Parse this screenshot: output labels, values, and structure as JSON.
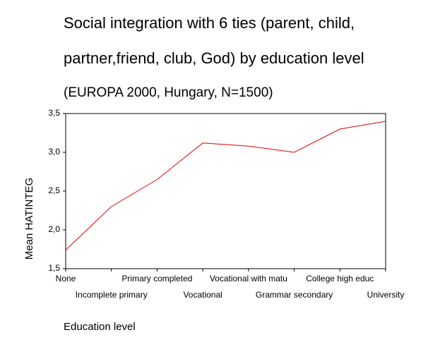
{
  "chart_data": {
    "type": "line",
    "title": [
      "Social integration with 6 ties (parent, child,",
      "partner,friend, club, God) by  education level"
    ],
    "subtitle": "(EUROPA 2000, Hungary, N=1500)",
    "x_label": "Education level",
    "y_label": "Mean HATINTEG",
    "categories": [
      "None",
      "Incomplete primary",
      "Primary completed",
      "Vocational",
      "Vocational with matu",
      "Grammar secondary",
      "College high educ",
      "University"
    ],
    "series": [
      {
        "name": "Mean HATINTEG",
        "color": "#e00000",
        "values": [
          1.74,
          2.3,
          2.65,
          3.12,
          3.08,
          3.0,
          3.3,
          3.4
        ]
      }
    ],
    "ylim": [
      1.5,
      3.5
    ],
    "yticks": [
      {
        "value": 1.5,
        "label": "1,5"
      },
      {
        "value": 2.0,
        "label": "2,0"
      },
      {
        "value": 2.5,
        "label": "2,5"
      },
      {
        "value": 3.0,
        "label": "3,0"
      },
      {
        "value": 3.5,
        "label": "3,5"
      }
    ],
    "grid": false
  }
}
